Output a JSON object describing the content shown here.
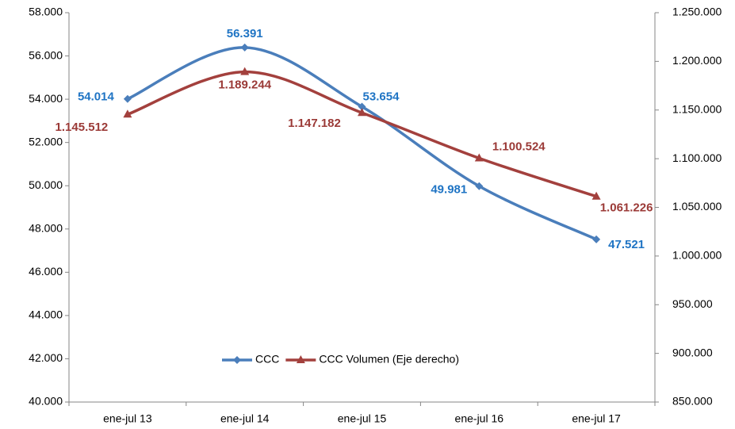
{
  "chart_data": {
    "type": "line",
    "categories": [
      "ene-jul 13",
      "ene-jul 14",
      "ene-jul 15",
      "ene-jul 16",
      "ene-jul 17"
    ],
    "series": [
      {
        "name": "CCC",
        "color": "#4a7ebb",
        "label_color": "#1f74c4",
        "marker": "diamond",
        "values": [
          54014,
          56391,
          53654,
          49981,
          47521
        ],
        "value_labels": [
          "54.014",
          "56.391",
          "53.654",
          "49.981",
          "47.521"
        ]
      },
      {
        "name": "CCC Volumen (Eje derecho)",
        "color": "#a3403d",
        "label_color": "#9b3a37",
        "marker": "triangle",
        "axis": "y2",
        "values": [
          1145512,
          1189244,
          1147182,
          1100524,
          1061226
        ],
        "value_labels": [
          "1.145.512",
          "1.189.244",
          "1.147.182",
          "1.100.524",
          "1.061.226"
        ]
      }
    ],
    "ylim": [
      40000,
      58000
    ],
    "yticks": [
      {
        "value": 40000,
        "label": "40.000"
      },
      {
        "value": 42000,
        "label": "42.000"
      },
      {
        "value": 44000,
        "label": "44.000"
      },
      {
        "value": 46000,
        "label": "46.000"
      },
      {
        "value": 48000,
        "label": "48.000"
      },
      {
        "value": 50000,
        "label": "50.000"
      },
      {
        "value": 52000,
        "label": "52.000"
      },
      {
        "value": 54000,
        "label": "54.000"
      },
      {
        "value": 56000,
        "label": "56.000"
      },
      {
        "value": 58000,
        "label": "58.000"
      }
    ],
    "y2lim": [
      850000,
      1250000
    ],
    "y2ticks": [
      {
        "value": 850000,
        "label": "850.000"
      },
      {
        "value": 900000,
        "label": "900.000"
      },
      {
        "value": 950000,
        "label": "950.000"
      },
      {
        "value": 1000000,
        "label": "1.000.000"
      },
      {
        "value": 1050000,
        "label": "1.050.000"
      },
      {
        "value": 1100000,
        "label": "1.100.000"
      },
      {
        "value": 1150000,
        "label": "1.150.000"
      },
      {
        "value": 1200000,
        "label": "1.200.000"
      },
      {
        "value": 1250000,
        "label": "1.250.000"
      }
    ],
    "grid": false,
    "smooth": true,
    "legend": "bottom"
  }
}
